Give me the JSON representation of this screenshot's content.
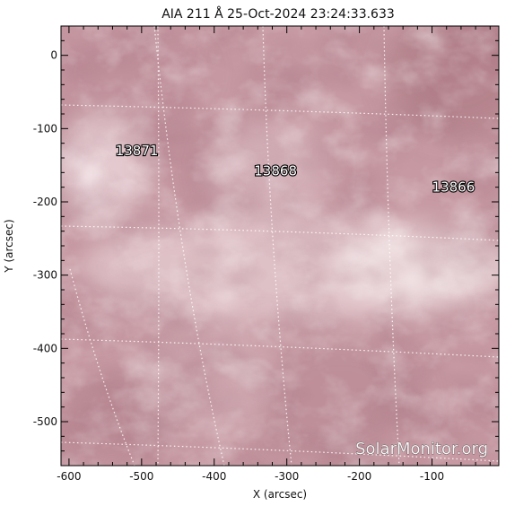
{
  "title": "AIA 211 Å 25-Oct-2024 23:24:33.633",
  "xlabel": "X (arcsec)",
  "ylabel": "Y (arcsec)",
  "x_ticks": [
    "-600",
    "-500",
    "-400",
    "-300",
    "-200",
    "-100"
  ],
  "y_ticks": [
    "0",
    "-100",
    "-200",
    "-300",
    "-400",
    "-500"
  ],
  "x_range": [
    -611,
    -8
  ],
  "y_range": [
    -560,
    40
  ],
  "active_regions": [
    {
      "label": "13871",
      "x": -536,
      "y": -130
    },
    {
      "label": "13868",
      "x": -345,
      "y": -158
    },
    {
      "label": "13866",
      "x": -100,
      "y": -180
    }
  ],
  "watermark": "SolarMonitor.org",
  "colors": {
    "image_base": "#c79aa3",
    "image_dark": "#9c6a75",
    "image_bright": "#efdde0",
    "grid": "#ffffff"
  }
}
